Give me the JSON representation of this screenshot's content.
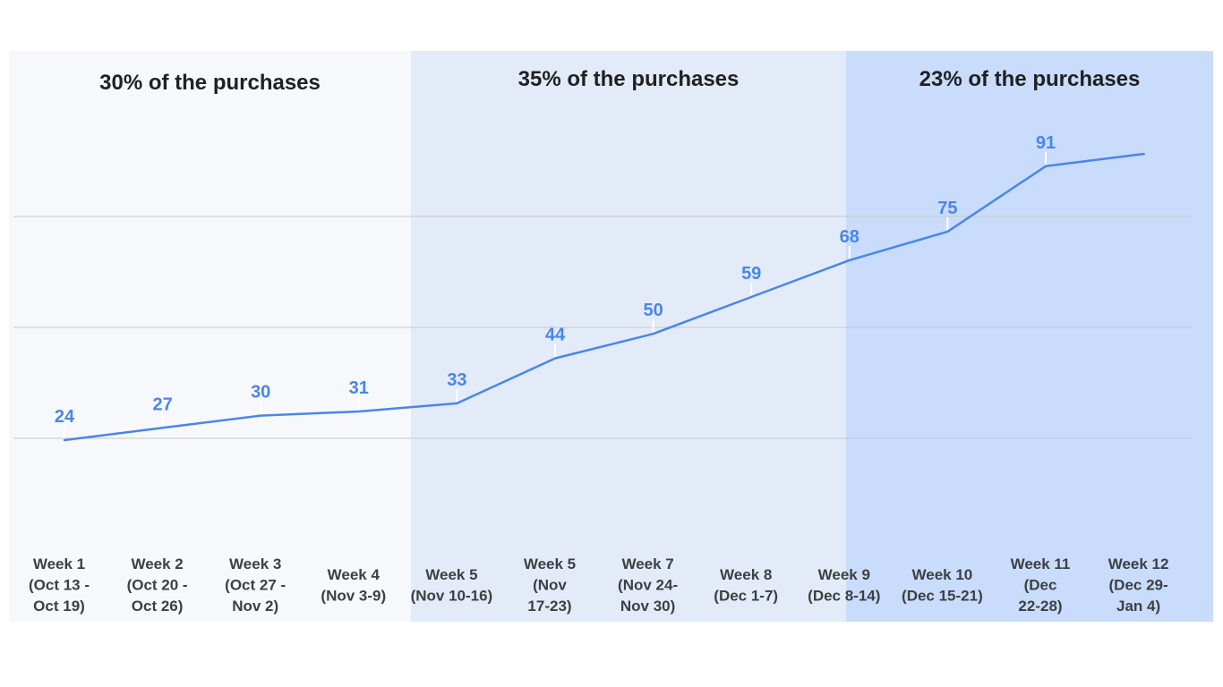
{
  "chart_data": {
    "type": "line",
    "title": "",
    "xlabel": "",
    "ylabel": "",
    "categories": [
      [
        "Week 1",
        "(Oct 13 -",
        "Oct 19)"
      ],
      [
        "Week 2",
        "(Oct 20 -",
        "Oct 26)"
      ],
      [
        "Week 3",
        "(Oct 27 -",
        "Nov 2)"
      ],
      [
        "Week 4",
        "(Nov 3-9)"
      ],
      [
        "Week 5",
        "(Nov 10-16)"
      ],
      [
        "Week 5",
        "(Nov",
        "17-23)"
      ],
      [
        "Week 7",
        "(Nov 24-",
        "Nov 30)"
      ],
      [
        "Week 8",
        "(Dec 1-7)"
      ],
      [
        "Week 9",
        "(Dec 8-14)"
      ],
      [
        "Week 10",
        "(Dec 15-21)"
      ],
      [
        "Week 11",
        "(Dec",
        "22-28)"
      ],
      [
        "Week 12",
        "(Dec 29-",
        "Jan 4)"
      ]
    ],
    "series": [
      {
        "values": [
          24,
          27,
          30,
          31,
          33,
          44,
          50,
          59,
          68,
          75,
          91,
          94
        ]
      }
    ],
    "data_labels": [
      "24",
      "27",
      "30",
      "31",
      "33",
      "44",
      "50",
      "59",
      "68",
      "75",
      "91",
      ""
    ],
    "bands": [
      {
        "label": "30% of the purchases",
        "start": 0,
        "end": 3,
        "color": "#f6f8fb"
      },
      {
        "label": "35% of the purchases",
        "start": 4,
        "end": 7,
        "color": "#e3ebf8"
      },
      {
        "label": "23% of the purchases",
        "start": 8,
        "end": 11,
        "color": "#c9dcfc"
      }
    ],
    "ylim": [
      0,
      100
    ],
    "grid": true,
    "line_color": "#4a86e8"
  }
}
